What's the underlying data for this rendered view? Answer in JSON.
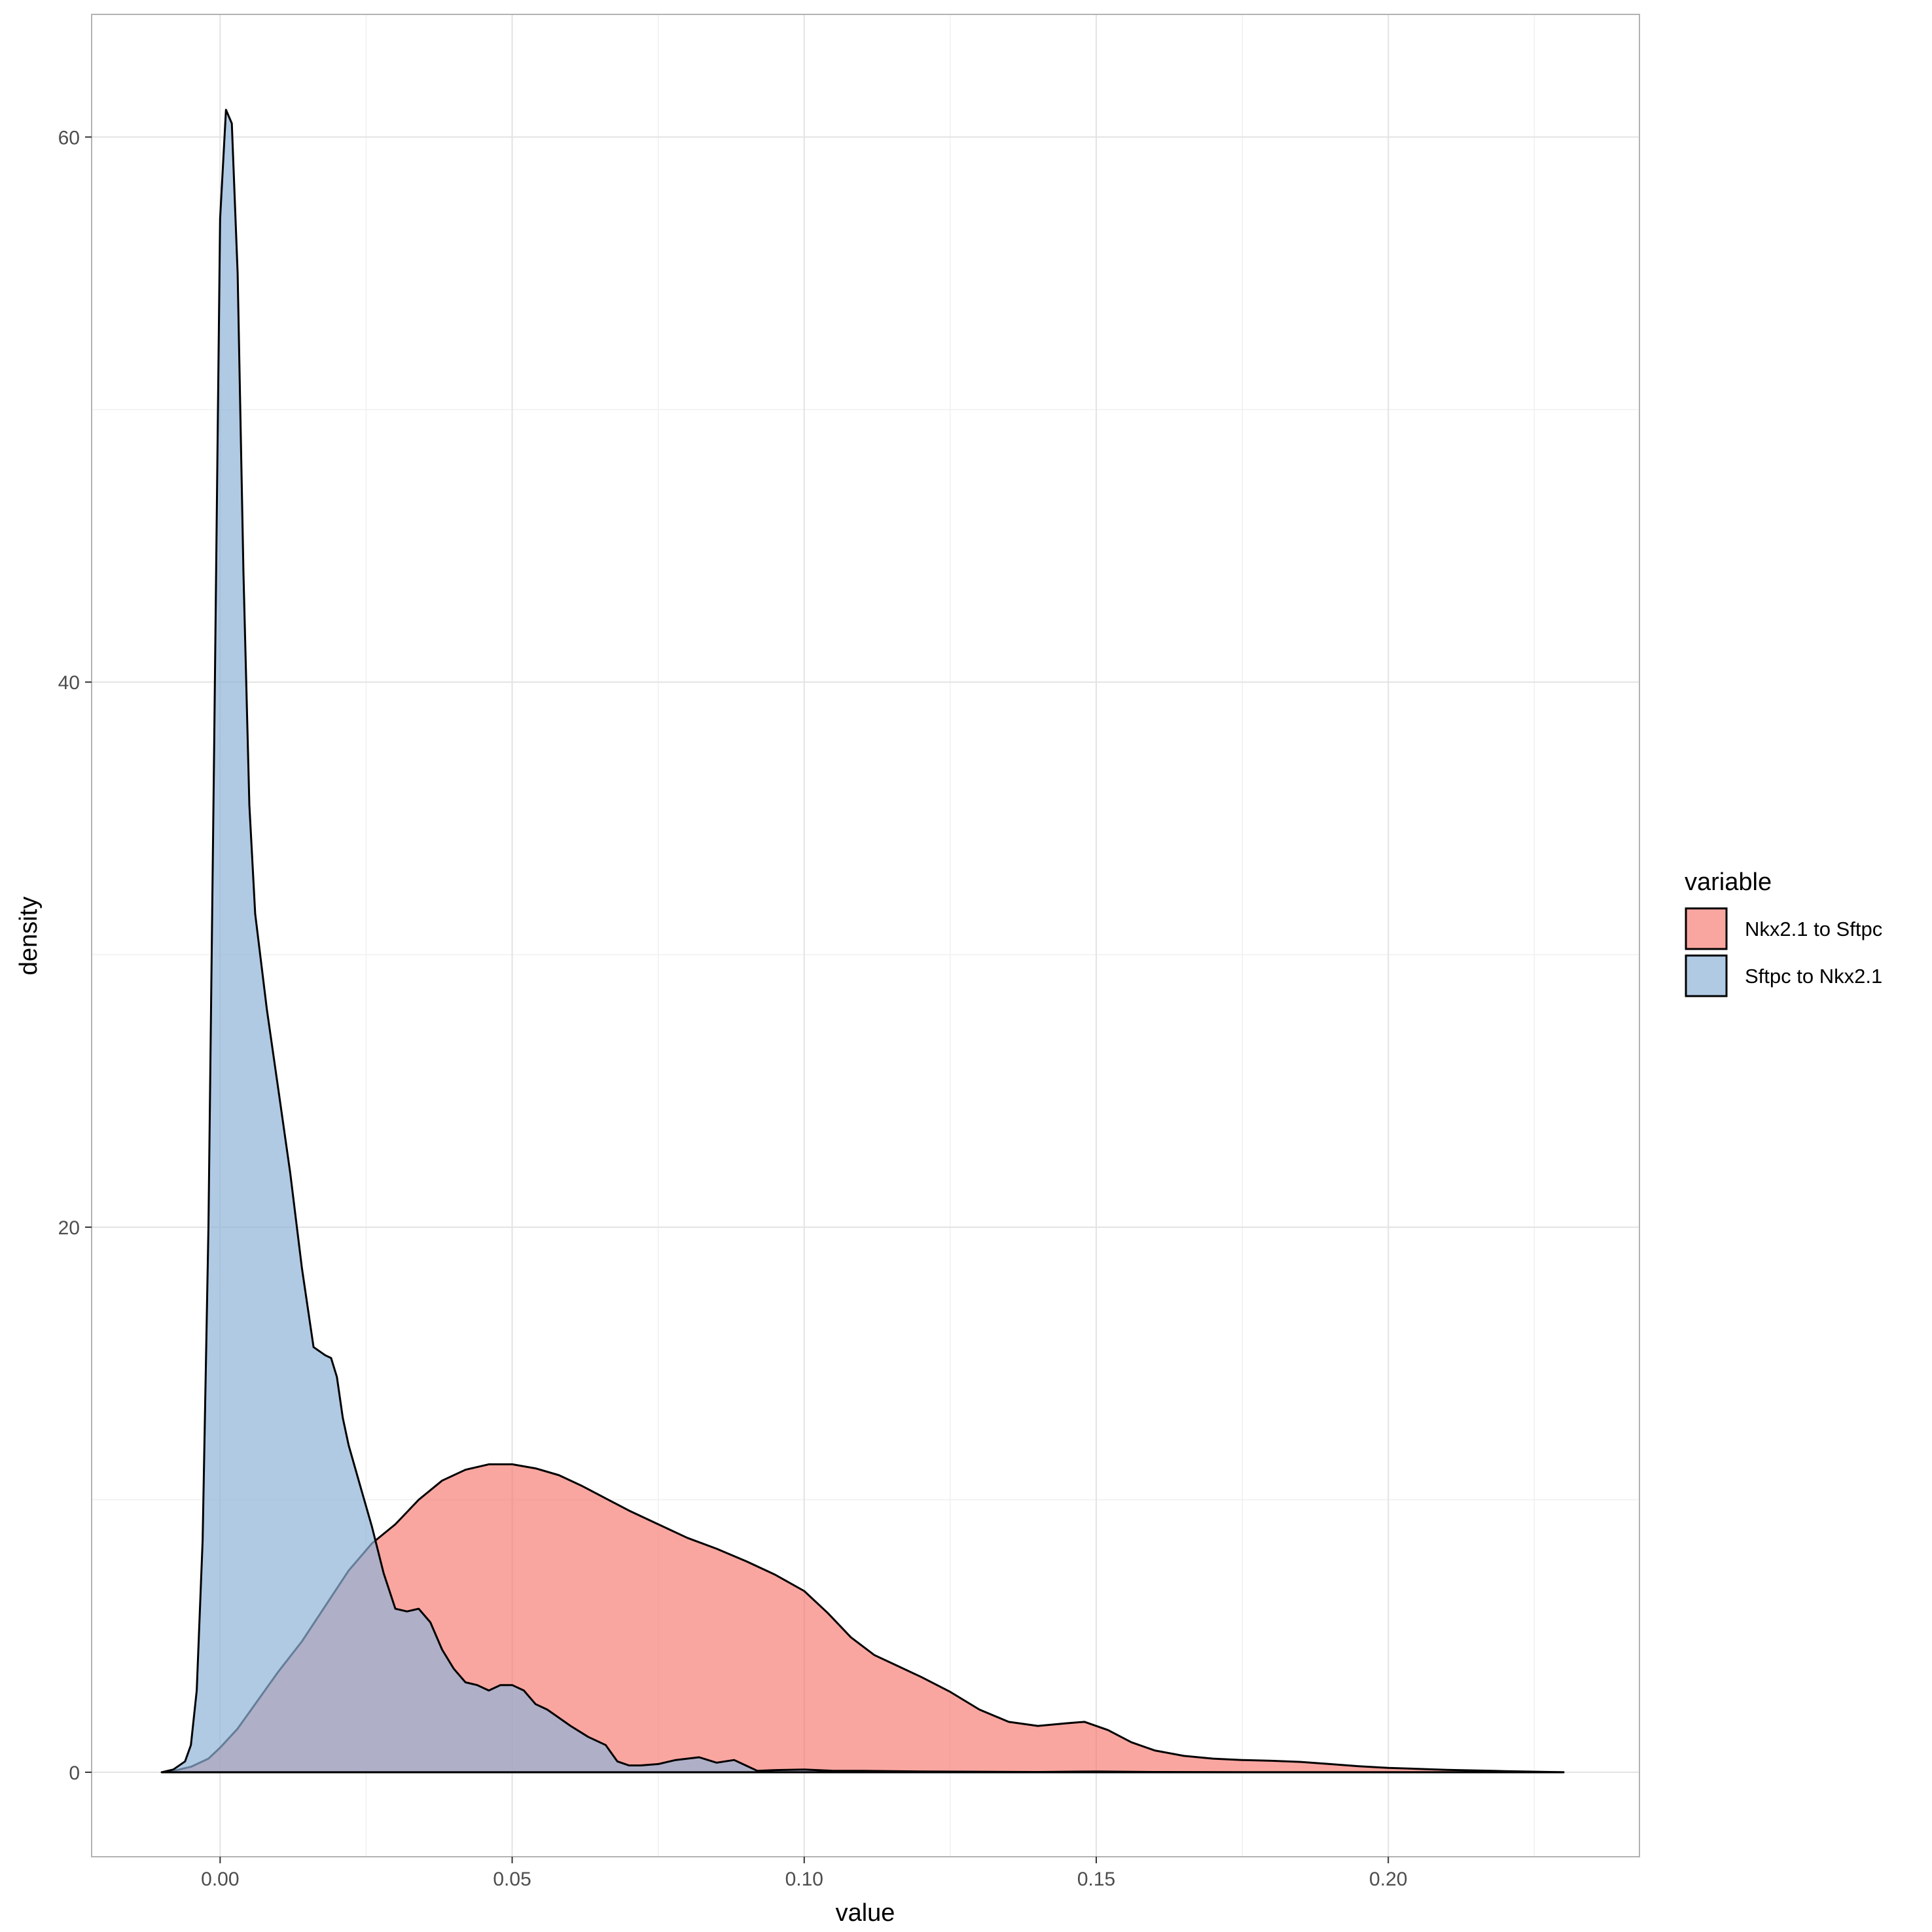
{
  "chart_data": {
    "type": "area",
    "subtype": "density",
    "title": "",
    "xlabel": "value",
    "ylabel": "density",
    "xlim": [
      -0.022,
      0.243
    ],
    "ylim": [
      -3.1,
      64.5
    ],
    "x_ticks": [
      0.0,
      0.05,
      0.1,
      0.15,
      0.2
    ],
    "x_tick_labels": [
      "0.00",
      "0.05",
      "0.10",
      "0.15",
      "0.20"
    ],
    "y_ticks": [
      0,
      20,
      40,
      60
    ],
    "y_tick_labels": [
      "0",
      "20",
      "40",
      "60"
    ],
    "grid": true,
    "legend": {
      "title": "variable",
      "position": "right",
      "entries": [
        "Nkx2.1 to Sftpc",
        "Sftpc to Nkx2.1"
      ]
    },
    "series": [
      {
        "name": "Nkx2.1 to Sftpc",
        "fill": "#F8766D",
        "fill_opacity": 0.65,
        "x": [
          -0.01,
          -0.008,
          -0.005,
          -0.002,
          0.0,
          0.003,
          0.006,
          0.01,
          0.014,
          0.018,
          0.022,
          0.026,
          0.03,
          0.034,
          0.038,
          0.042,
          0.046,
          0.05,
          0.054,
          0.058,
          0.062,
          0.066,
          0.07,
          0.075,
          0.08,
          0.085,
          0.09,
          0.095,
          0.1,
          0.104,
          0.108,
          0.112,
          0.116,
          0.12,
          0.125,
          0.13,
          0.135,
          0.14,
          0.145,
          0.148,
          0.152,
          0.156,
          0.16,
          0.165,
          0.17,
          0.175,
          0.18,
          0.185,
          0.19,
          0.195,
          0.2,
          0.21,
          0.22,
          0.23
        ],
        "y": [
          0.0,
          0.05,
          0.2,
          0.5,
          0.9,
          1.6,
          2.5,
          3.7,
          4.8,
          6.1,
          7.4,
          8.4,
          9.1,
          10.0,
          10.7,
          11.1,
          11.3,
          11.3,
          11.15,
          10.9,
          10.5,
          10.05,
          9.6,
          9.1,
          8.6,
          8.2,
          7.75,
          7.25,
          6.65,
          5.85,
          4.95,
          4.3,
          3.9,
          3.5,
          2.95,
          2.3,
          1.85,
          1.7,
          1.8,
          1.85,
          1.55,
          1.1,
          0.8,
          0.6,
          0.5,
          0.45,
          0.42,
          0.38,
          0.3,
          0.22,
          0.16,
          0.09,
          0.04,
          0.0
        ]
      },
      {
        "name": "Sftpc to Nkx2.1",
        "fill": "#8FB4D9",
        "fill_opacity": 0.7,
        "x": [
          -0.01,
          -0.008,
          -0.006,
          -0.005,
          -0.004,
          -0.003,
          -0.002,
          -0.001,
          0.0,
          0.001,
          0.002,
          0.003,
          0.004,
          0.005,
          0.006,
          0.008,
          0.01,
          0.012,
          0.014,
          0.016,
          0.018,
          0.019,
          0.02,
          0.021,
          0.022,
          0.024,
          0.026,
          0.028,
          0.03,
          0.032,
          0.034,
          0.036,
          0.038,
          0.04,
          0.042,
          0.044,
          0.046,
          0.048,
          0.05,
          0.052,
          0.054,
          0.056,
          0.058,
          0.06,
          0.063,
          0.066,
          0.068,
          0.07,
          0.072,
          0.075,
          0.078,
          0.082,
          0.085,
          0.088,
          0.09,
          0.092,
          0.095,
          0.1,
          0.105,
          0.11,
          0.115,
          0.12,
          0.13,
          0.14,
          0.15,
          0.16,
          0.18,
          0.2,
          0.23
        ],
        "y": [
          0.0,
          0.1,
          0.4,
          1.0,
          3.0,
          8.5,
          20.0,
          38.0,
          57.0,
          61.0,
          60.5,
          55.0,
          44.0,
          35.5,
          31.5,
          28.0,
          25.0,
          22.0,
          18.5,
          15.6,
          15.3,
          15.2,
          14.5,
          13.0,
          12.0,
          10.5,
          9.0,
          7.3,
          6.0,
          5.9,
          6.0,
          5.5,
          4.5,
          3.8,
          3.3,
          3.2,
          3.0,
          3.2,
          3.2,
          3.0,
          2.5,
          2.3,
          2.0,
          1.7,
          1.3,
          1.0,
          0.4,
          0.25,
          0.25,
          0.3,
          0.45,
          0.55,
          0.35,
          0.45,
          0.25,
          0.05,
          0.08,
          0.1,
          0.05,
          0.05,
          0.04,
          0.03,
          0.02,
          0.01,
          0.03,
          0.01,
          0.0,
          0.0,
          0.0
        ]
      }
    ]
  }
}
